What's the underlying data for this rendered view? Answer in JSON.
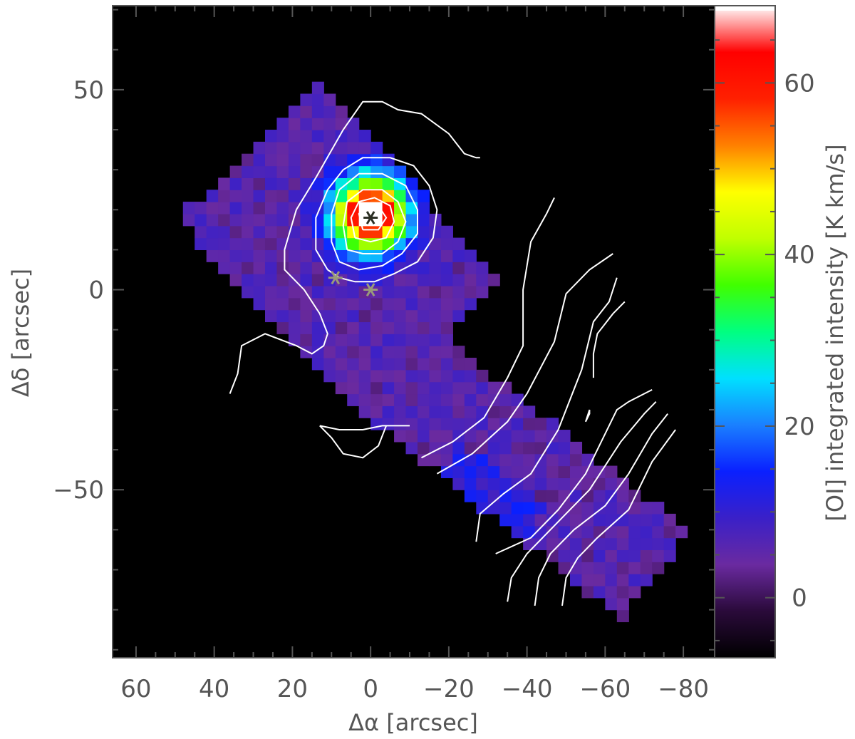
{
  "chart_data": {
    "type": "heatmap",
    "xlabel": "Δα [arcsec]",
    "ylabel": "Δδ [arcsec]",
    "xlim": [
      66,
      -88
    ],
    "ylim": [
      -92,
      71
    ],
    "x_ticks": [
      60,
      40,
      20,
      0,
      -20,
      -40,
      -60,
      -80
    ],
    "x_tick_labels": [
      "60",
      "40",
      "20",
      "0",
      "−20",
      "−40",
      "−60",
      "−80"
    ],
    "y_ticks": [
      50,
      0,
      -50
    ],
    "y_tick_labels": [
      "50",
      "0",
      "−50"
    ],
    "colorbar": {
      "label": "[OI] integrated intensity [K km/s]",
      "range": [
        -7,
        69
      ],
      "ticks": [
        60,
        40,
        20,
        0
      ],
      "tick_labels": [
        "60",
        "40",
        "20",
        "0"
      ],
      "colormap": [
        "#000000",
        "#2a0a3a",
        "#6a2aa0",
        "#3a20c8",
        "#0a20ff",
        "#1a80ff",
        "#00e0ff",
        "#00ff80",
        "#40ff00",
        "#c0ff00",
        "#ffff00",
        "#ff8000",
        "#ff2000",
        "#ff0000",
        "#ffffff"
      ]
    },
    "emission_peak": {
      "x": 0,
      "y": 19,
      "peak_value": 69
    },
    "markers": [
      {
        "x": 0,
        "y": 18,
        "color": "#2b2f24"
      },
      {
        "x": 9,
        "y": 3,
        "color": "#9a9a7a"
      },
      {
        "x": 0,
        "y": 0,
        "color": "#9a9a7a"
      }
    ],
    "contour_color": "#ffffff",
    "contours": [
      [
        [
          36,
          -26
        ],
        [
          34,
          -21
        ],
        [
          33,
          -14
        ],
        [
          27,
          -11
        ],
        [
          19,
          -14
        ],
        [
          15,
          -16
        ],
        [
          12,
          -14
        ],
        [
          11,
          -11
        ],
        [
          13,
          -6
        ],
        [
          17,
          0
        ],
        [
          22,
          5
        ],
        [
          22,
          10
        ],
        [
          19,
          20
        ],
        [
          14,
          28
        ],
        [
          7,
          40
        ],
        [
          2,
          47
        ],
        [
          -3,
          47
        ],
        [
          -7,
          45
        ],
        [
          -13,
          44
        ],
        [
          -20,
          39
        ],
        [
          -24,
          34
        ],
        [
          -27,
          33
        ],
        [
          -28,
          33
        ]
      ],
      [
        [
          13,
          -34
        ],
        [
          10,
          -37
        ],
        [
          7,
          -41
        ],
        [
          2,
          -42
        ],
        [
          -2,
          -39
        ],
        [
          -4,
          -34
        ],
        [
          -10,
          -34
        ],
        [
          -3,
          -34
        ],
        [
          2,
          -35
        ],
        [
          8,
          -35
        ],
        [
          13,
          -34
        ]
      ],
      [
        [
          11,
          5
        ],
        [
          14,
          10
        ],
        [
          14,
          18
        ],
        [
          11,
          25
        ],
        [
          7,
          30
        ],
        [
          2,
          33
        ],
        [
          -5,
          33
        ],
        [
          -11,
          31
        ],
        [
          -15,
          26
        ],
        [
          -17,
          20
        ],
        [
          -16,
          13
        ],
        [
          -12,
          7
        ],
        [
          -6,
          4
        ],
        [
          -1,
          2
        ],
        [
          4,
          2
        ],
        [
          8,
          3
        ],
        [
          11,
          5
        ]
      ],
      [
        [
          8,
          7
        ],
        [
          10,
          12
        ],
        [
          10,
          19
        ],
        [
          8,
          25
        ],
        [
          3,
          29
        ],
        [
          -3,
          29
        ],
        [
          -9,
          26
        ],
        [
          -12,
          20
        ],
        [
          -12,
          14
        ],
        [
          -8,
          9
        ],
        [
          -3,
          6
        ],
        [
          3,
          5
        ],
        [
          8,
          7
        ]
      ],
      [
        [
          6,
          10
        ],
        [
          7,
          16
        ],
        [
          6,
          22
        ],
        [
          2,
          25
        ],
        [
          -3,
          25
        ],
        [
          -7,
          22
        ],
        [
          -9,
          17
        ],
        [
          -7,
          12
        ],
        [
          -3,
          9
        ],
        [
          2,
          9
        ],
        [
          6,
          10
        ]
      ],
      [
        [
          4,
          13
        ],
        [
          5,
          18
        ],
        [
          3,
          22
        ],
        [
          -1,
          23
        ],
        [
          -5,
          21
        ],
        [
          -6,
          17
        ],
        [
          -4,
          13
        ],
        [
          0,
          12
        ],
        [
          4,
          13
        ]
      ],
      [
        [
          2,
          15
        ],
        [
          3,
          19
        ],
        [
          1,
          21
        ],
        [
          -2,
          21
        ],
        [
          -4,
          18
        ],
        [
          -2,
          15
        ],
        [
          2,
          15
        ]
      ],
      [
        [
          -13,
          -42
        ],
        [
          -21,
          -38
        ],
        [
          -29,
          -32
        ],
        [
          -35,
          -22
        ],
        [
          -39,
          -14
        ],
        [
          -39,
          0
        ],
        [
          -41,
          12
        ],
        [
          -45,
          19
        ],
        [
          -47,
          23
        ]
      ],
      [
        [
          -17,
          -46
        ],
        [
          -26,
          -41
        ],
        [
          -35,
          -33
        ],
        [
          -40,
          -26
        ],
        [
          -47,
          -13
        ],
        [
          -50,
          -1
        ],
        [
          -56,
          5
        ],
        [
          -62,
          9
        ]
      ],
      [
        [
          -27,
          -63
        ],
        [
          -28,
          -56
        ],
        [
          -34,
          -51
        ],
        [
          -41,
          -46
        ],
        [
          -48,
          -35
        ],
        [
          -54,
          -20
        ],
        [
          -57,
          -8
        ],
        [
          -61,
          -3
        ],
        [
          -63,
          3
        ]
      ],
      [
        [
          -32,
          -66
        ],
        [
          -41,
          -62
        ],
        [
          -48,
          -55
        ],
        [
          -55,
          -46
        ],
        [
          -63,
          -30
        ],
        [
          -66,
          -28
        ],
        [
          -72,
          -25
        ]
      ],
      [
        [
          -57,
          -22
        ],
        [
          -57,
          -16
        ],
        [
          -58,
          -11
        ],
        [
          -62,
          -6
        ],
        [
          -65,
          -3
        ]
      ],
      [
        [
          -35,
          -78
        ],
        [
          -36,
          -72
        ],
        [
          -40,
          -66
        ],
        [
          -48,
          -58
        ],
        [
          -56,
          -50
        ],
        [
          -64,
          -38
        ],
        [
          -70,
          -31
        ],
        [
          -73,
          -28
        ]
      ],
      [
        [
          -42,
          -79
        ],
        [
          -43,
          -72
        ],
        [
          -46,
          -66
        ],
        [
          -52,
          -60
        ],
        [
          -60,
          -54
        ],
        [
          -66,
          -46
        ],
        [
          -72,
          -36
        ],
        [
          -76,
          -31
        ]
      ],
      [
        [
          -49,
          -79
        ],
        [
          -50,
          -72
        ],
        [
          -53,
          -67
        ],
        [
          -58,
          -62
        ],
        [
          -66,
          -55
        ],
        [
          -72,
          -43
        ],
        [
          -78,
          -35
        ]
      ],
      [
        [
          -55,
          -33
        ],
        [
          -56,
          -30
        ],
        [
          -56,
          -31
        ],
        [
          -55,
          -33
        ]
      ]
    ],
    "grid": false,
    "legend": "none"
  }
}
